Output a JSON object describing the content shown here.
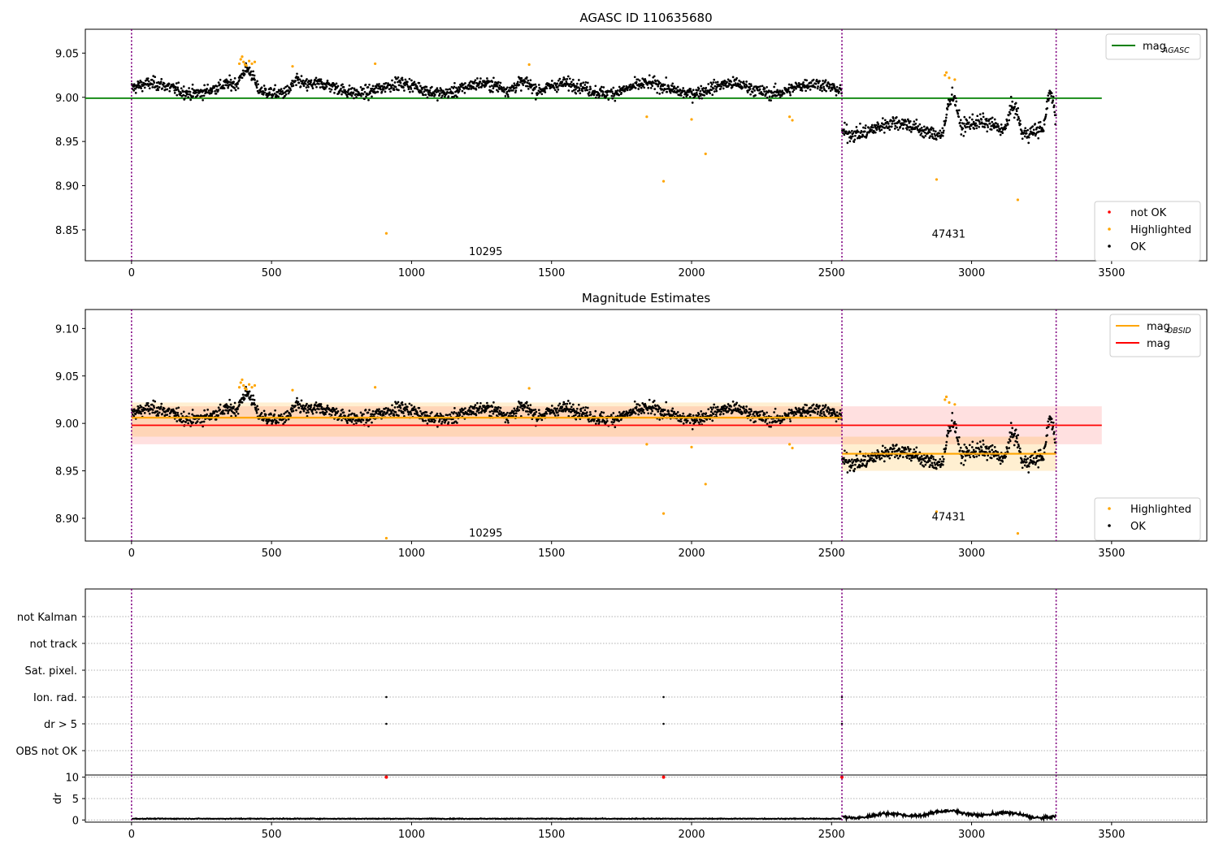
{
  "chart_data": [
    {
      "type": "scatter",
      "title": "AGASC ID 110635680",
      "xlim": [
        -165,
        3840
      ],
      "ylim": [
        8.815,
        9.077
      ],
      "yticks": [
        8.85,
        8.9,
        8.95,
        9.0,
        9.05
      ],
      "ytick_labels": [
        "8.85",
        "8.90",
        "8.95",
        "9.00",
        "9.05"
      ],
      "xticks": [
        0,
        500,
        1000,
        1500,
        2000,
        2500,
        3000,
        3500
      ],
      "xtick_labels": [
        "0",
        "500",
        "1000",
        "1500",
        "2000",
        "2500",
        "3000",
        "3500"
      ],
      "grid": false,
      "hlines": [
        {
          "name": "mag_AGASC",
          "y": 8.999,
          "x": [
            -165,
            3465
          ],
          "color": "#008000"
        }
      ],
      "vlines": [
        0,
        2537,
        3302
      ],
      "obsid_labels": [
        {
          "text": "10295",
          "x": 1265,
          "y": 8.826
        },
        {
          "text": "47431",
          "x": 2918,
          "y": 8.846
        }
      ],
      "segments": [
        {
          "x": [
            0,
            2537
          ],
          "baseline": 9.01,
          "noise": 0.01,
          "bumps": [
            {
              "x": [
                380,
                450
              ],
              "dy": 0.018
            },
            {
              "x": [
                1350,
                1450
              ],
              "dy": 0.012
            },
            {
              "x": [
                560,
                620
              ],
              "dy": 0.008
            }
          ]
        },
        {
          "x": [
            2537,
            3302
          ],
          "baseline": 8.965,
          "noise": 0.012,
          "bumps": [
            {
              "x": [
                2900,
                2960
              ],
              "dy": 0.04
            },
            {
              "x": [
                3120,
                3180
              ],
              "dy": 0.03
            },
            {
              "x": [
                3260,
                3302
              ],
              "dy": 0.035
            }
          ]
        }
      ],
      "highlighted": [
        [
          385,
          9.038
        ],
        [
          390,
          9.043
        ],
        [
          395,
          9.046
        ],
        [
          400,
          9.04
        ],
        [
          405,
          9.037
        ],
        [
          410,
          9.036
        ],
        [
          420,
          9.041
        ],
        [
          430,
          9.038
        ],
        [
          440,
          9.04
        ],
        [
          870,
          9.038
        ],
        [
          575,
          9.035
        ],
        [
          1420,
          9.037
        ],
        [
          1840,
          8.978
        ],
        [
          1900,
          8.905
        ],
        [
          2000,
          8.975
        ],
        [
          2050,
          8.936
        ],
        [
          2350,
          8.978
        ],
        [
          2360,
          8.974
        ],
        [
          910,
          8.846
        ],
        [
          2905,
          9.025
        ],
        [
          2910,
          9.028
        ],
        [
          2920,
          9.022
        ],
        [
          2940,
          9.02
        ],
        [
          2875,
          8.907
        ],
        [
          3165,
          8.884
        ]
      ],
      "legend": {
        "position": "lower-right",
        "entries": [
          {
            "label": "not OK",
            "color": "#ff0000"
          },
          {
            "label": "Highlighted",
            "color": "#ffa500"
          },
          {
            "label": "OK",
            "color": "#000000"
          }
        ]
      },
      "legend2": {
        "position": "upper-right",
        "entries": [
          {
            "label": "mag",
            "sub": "AGASC",
            "color": "#008000"
          }
        ]
      }
    },
    {
      "type": "scatter",
      "title": "Magnitude Estimates",
      "xlim": [
        -165,
        3840
      ],
      "ylim": [
        8.876,
        9.12
      ],
      "yticks": [
        8.9,
        8.95,
        9.0,
        9.05,
        9.1
      ],
      "ytick_labels": [
        "8.90",
        "8.95",
        "9.00",
        "9.05",
        "9.10"
      ],
      "xticks": [
        0,
        500,
        1000,
        1500,
        2000,
        2500,
        3000,
        3500
      ],
      "xtick_labels": [
        "0",
        "500",
        "1000",
        "1500",
        "2000",
        "2500",
        "3000",
        "3500"
      ],
      "grid": false,
      "mag": {
        "y": 8.998,
        "band": [
          8.978,
          9.018
        ],
        "x": [
          0,
          3465
        ],
        "color": "#ff0000"
      },
      "mag_obsid": [
        {
          "x": [
            0,
            2537
          ],
          "y": 9.006,
          "band": [
            8.986,
            9.022
          ]
        },
        {
          "x": [
            2537,
            3302
          ],
          "y": 8.968,
          "band": [
            8.95,
            8.986
          ]
        }
      ],
      "vlines": [
        0,
        2537,
        3302
      ],
      "obsid_labels": [
        {
          "text": "10295",
          "x": 1265,
          "y": 8.885
        },
        {
          "text": "47431",
          "x": 2918,
          "y": 8.902
        }
      ],
      "legend": {
        "position": "lower-right",
        "entries": [
          {
            "label": "Highlighted",
            "color": "#ffa500"
          },
          {
            "label": "OK",
            "color": "#000000"
          }
        ]
      },
      "legend2": {
        "position": "upper-right",
        "entries": [
          {
            "label": "mag",
            "sub": "OBSID",
            "color": "#ffa500"
          },
          {
            "label": "mag",
            "color": "#ff0000"
          }
        ]
      }
    },
    {
      "type": "scatter",
      "title": "",
      "xlim": [
        -165,
        3840
      ],
      "categories": [
        "not Kalman",
        "not track",
        "Sat. pixel.",
        "Ion. rad.",
        "dr > 5",
        "OBS not OK"
      ],
      "flag_points": [
        {
          "category": "Ion. rad.",
          "x": [
            910,
            1900,
            2537
          ]
        },
        {
          "category": "dr > 5",
          "x": [
            910,
            1900,
            2537
          ]
        }
      ],
      "vlines": [
        0,
        2537,
        3302
      ],
      "grid": true
    },
    {
      "type": "line",
      "ylabel": "dr",
      "xlim": [
        -165,
        3840
      ],
      "ylim": [
        -0.5,
        10.5
      ],
      "yticks": [
        0,
        5,
        10
      ],
      "ytick_labels": [
        "0",
        "5",
        "10"
      ],
      "xticks": [
        0,
        500,
        1000,
        1500,
        2000,
        2500,
        3000,
        3500
      ],
      "xtick_labels": [
        "0",
        "500",
        "1000",
        "1500",
        "2000",
        "2500",
        "3000",
        "3500"
      ],
      "segments": [
        {
          "x": [
            0,
            2537
          ],
          "mean": 0.3
        },
        {
          "x": [
            2537,
            3302
          ],
          "mean": 1.3
        }
      ],
      "clipped": [
        910,
        1900,
        2537
      ],
      "vlines": [
        0,
        2537,
        3302
      ],
      "grid": true
    }
  ]
}
